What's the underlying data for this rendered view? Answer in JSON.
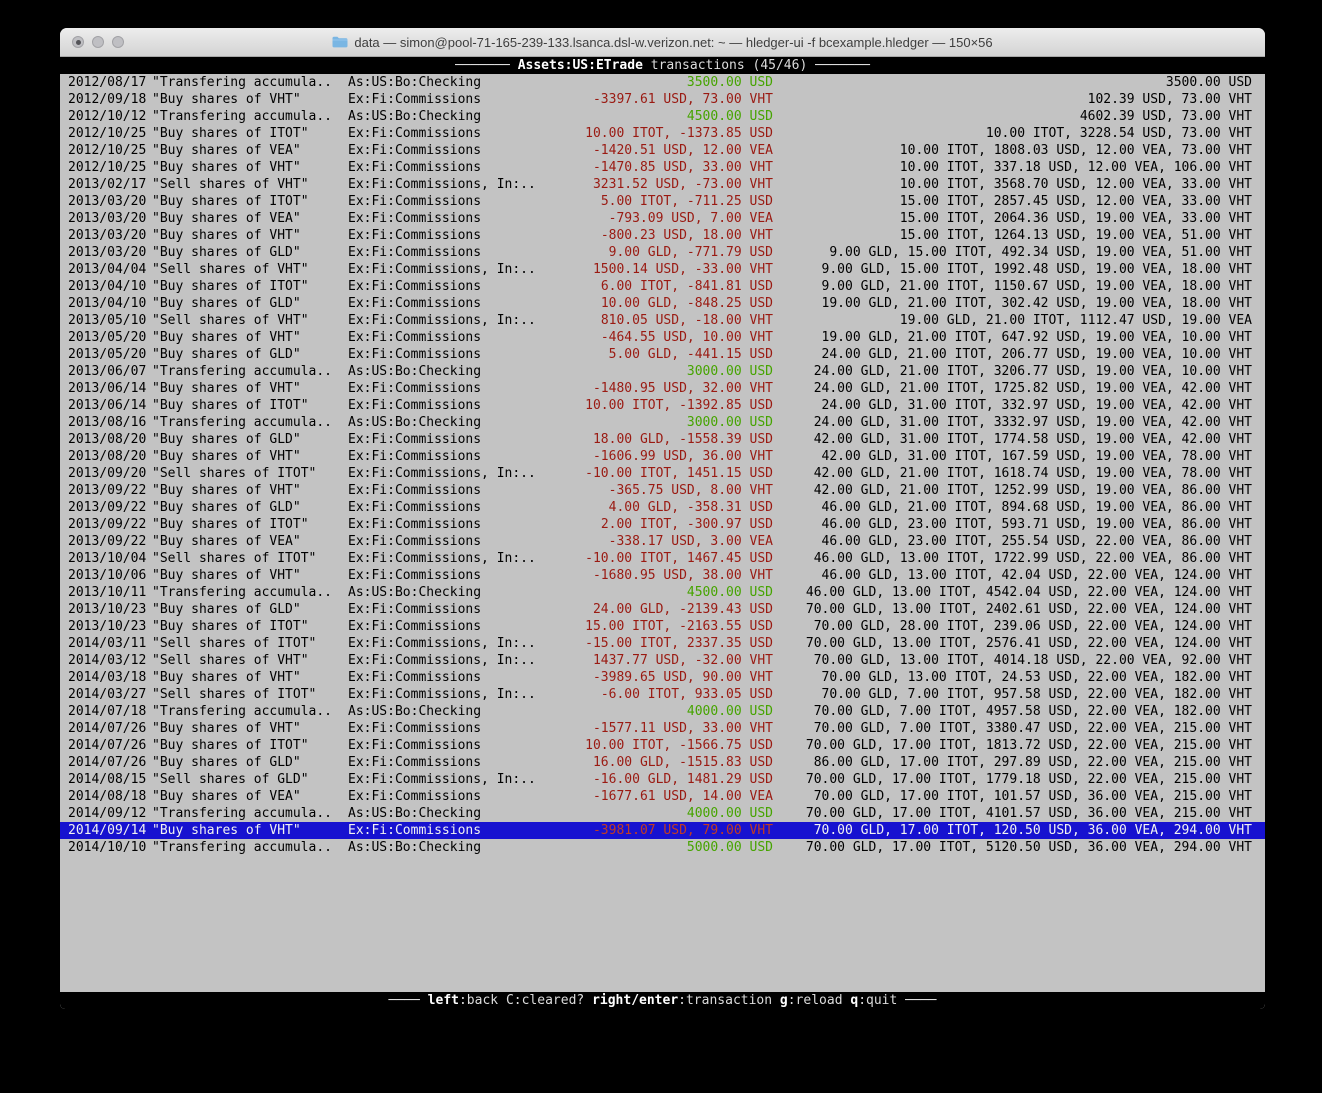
{
  "colors": {
    "terminal_bg": "#c3c3c3",
    "positive_amount": "#46a400",
    "negative_amount": "#9a1a12",
    "selected_row_bg": "#1712d0",
    "selected_row_text": "#f2f2f2",
    "selected_negative_amount": "#c23b22",
    "bar_bg": "#000000",
    "bar_text": "#dcdcdc"
  },
  "window": {
    "title": "data — simon@pool-71-165-239-133.lsanca.dsl-w.verizon.net: ~ — hledger-ui -f bcexample.hledger — 150×56",
    "traffic_lights": [
      "close",
      "minimize",
      "zoom"
    ],
    "folder_icon": "blue-folder-icon"
  },
  "header": {
    "dash_left": "─────── ",
    "account": "Assets:US:ETrade",
    "subtitle": " transactions (45/46)",
    "dash_right": " ───────"
  },
  "footer": {
    "dash_left": "──── ",
    "dash_right": " ────",
    "hints": [
      {
        "key": "left",
        "label": ":back",
        "bold": true
      },
      {
        "key": "C",
        "label": ":cleared?",
        "bold": false
      },
      {
        "key": "right/enter",
        "label": ":transaction",
        "bold": true
      },
      {
        "key": "g",
        "label": ":reload",
        "bold": true
      },
      {
        "key": "q",
        "label": ":quit",
        "bold": true
      }
    ]
  },
  "register": {
    "selected_index": 44,
    "rows": [
      {
        "date": "2012/08/17",
        "desc": "\"Transfering accumula..",
        "account": "As:US:Bo:Checking",
        "change": "3500.00 USD",
        "tone": "green",
        "balance": "3500.00 USD"
      },
      {
        "date": "2012/09/18",
        "desc": "\"Buy shares of VHT\"",
        "account": "Ex:Fi:Commissions",
        "change": "-3397.61 USD, 73.00 VHT",
        "tone": "red",
        "balance": "102.39 USD, 73.00 VHT"
      },
      {
        "date": "2012/10/12",
        "desc": "\"Transfering accumula..",
        "account": "As:US:Bo:Checking",
        "change": "4500.00 USD",
        "tone": "green",
        "balance": "4602.39 USD, 73.00 VHT"
      },
      {
        "date": "2012/10/25",
        "desc": "\"Buy shares of ITOT\"",
        "account": "Ex:Fi:Commissions",
        "change": "10.00 ITOT, -1373.85 USD",
        "tone": "red",
        "balance": "10.00 ITOT, 3228.54 USD, 73.00 VHT"
      },
      {
        "date": "2012/10/25",
        "desc": "\"Buy shares of VEA\"",
        "account": "Ex:Fi:Commissions",
        "change": "-1420.51 USD, 12.00 VEA",
        "tone": "red",
        "balance": "10.00 ITOT, 1808.03 USD, 12.00 VEA, 73.00 VHT"
      },
      {
        "date": "2012/10/25",
        "desc": "\"Buy shares of VHT\"",
        "account": "Ex:Fi:Commissions",
        "change": "-1470.85 USD, 33.00 VHT",
        "tone": "red",
        "balance": "10.00 ITOT, 337.18 USD, 12.00 VEA, 106.00 VHT"
      },
      {
        "date": "2013/02/17",
        "desc": "\"Sell shares of VHT\"",
        "account": "Ex:Fi:Commissions, In:..",
        "change": "3231.52 USD, -73.00 VHT",
        "tone": "red",
        "balance": "10.00 ITOT, 3568.70 USD, 12.00 VEA, 33.00 VHT"
      },
      {
        "date": "2013/03/20",
        "desc": "\"Buy shares of ITOT\"",
        "account": "Ex:Fi:Commissions",
        "change": "5.00 ITOT, -711.25 USD",
        "tone": "red",
        "balance": "15.00 ITOT, 2857.45 USD, 12.00 VEA, 33.00 VHT"
      },
      {
        "date": "2013/03/20",
        "desc": "\"Buy shares of VEA\"",
        "account": "Ex:Fi:Commissions",
        "change": "-793.09 USD, 7.00 VEA",
        "tone": "red",
        "balance": "15.00 ITOT, 2064.36 USD, 19.00 VEA, 33.00 VHT"
      },
      {
        "date": "2013/03/20",
        "desc": "\"Buy shares of VHT\"",
        "account": "Ex:Fi:Commissions",
        "change": "-800.23 USD, 18.00 VHT",
        "tone": "red",
        "balance": "15.00 ITOT, 1264.13 USD, 19.00 VEA, 51.00 VHT"
      },
      {
        "date": "2013/03/20",
        "desc": "\"Buy shares of GLD\"",
        "account": "Ex:Fi:Commissions",
        "change": "9.00 GLD, -771.79 USD",
        "tone": "red",
        "balance": "9.00 GLD, 15.00 ITOT, 492.34 USD, 19.00 VEA, 51.00 VHT"
      },
      {
        "date": "2013/04/04",
        "desc": "\"Sell shares of VHT\"",
        "account": "Ex:Fi:Commissions, In:..",
        "change": "1500.14 USD, -33.00 VHT",
        "tone": "red",
        "balance": "9.00 GLD, 15.00 ITOT, 1992.48 USD, 19.00 VEA, 18.00 VHT"
      },
      {
        "date": "2013/04/10",
        "desc": "\"Buy shares of ITOT\"",
        "account": "Ex:Fi:Commissions",
        "change": "6.00 ITOT, -841.81 USD",
        "tone": "red",
        "balance": "9.00 GLD, 21.00 ITOT, 1150.67 USD, 19.00 VEA, 18.00 VHT"
      },
      {
        "date": "2013/04/10",
        "desc": "\"Buy shares of GLD\"",
        "account": "Ex:Fi:Commissions",
        "change": "10.00 GLD, -848.25 USD",
        "tone": "red",
        "balance": "19.00 GLD, 21.00 ITOT, 302.42 USD, 19.00 VEA, 18.00 VHT"
      },
      {
        "date": "2013/05/10",
        "desc": "\"Sell shares of VHT\"",
        "account": "Ex:Fi:Commissions, In:..",
        "change": "810.05 USD, -18.00 VHT",
        "tone": "red",
        "balance": "19.00 GLD, 21.00 ITOT, 1112.47 USD, 19.00 VEA"
      },
      {
        "date": "2013/05/20",
        "desc": "\"Buy shares of VHT\"",
        "account": "Ex:Fi:Commissions",
        "change": "-464.55 USD, 10.00 VHT",
        "tone": "red",
        "balance": "19.00 GLD, 21.00 ITOT, 647.92 USD, 19.00 VEA, 10.00 VHT"
      },
      {
        "date": "2013/05/20",
        "desc": "\"Buy shares of GLD\"",
        "account": "Ex:Fi:Commissions",
        "change": "5.00 GLD, -441.15 USD",
        "tone": "red",
        "balance": "24.00 GLD, 21.00 ITOT, 206.77 USD, 19.00 VEA, 10.00 VHT"
      },
      {
        "date": "2013/06/07",
        "desc": "\"Transfering accumula..",
        "account": "As:US:Bo:Checking",
        "change": "3000.00 USD",
        "tone": "green",
        "balance": "24.00 GLD, 21.00 ITOT, 3206.77 USD, 19.00 VEA, 10.00 VHT"
      },
      {
        "date": "2013/06/14",
        "desc": "\"Buy shares of VHT\"",
        "account": "Ex:Fi:Commissions",
        "change": "-1480.95 USD, 32.00 VHT",
        "tone": "red",
        "balance": "24.00 GLD, 21.00 ITOT, 1725.82 USD, 19.00 VEA, 42.00 VHT"
      },
      {
        "date": "2013/06/14",
        "desc": "\"Buy shares of ITOT\"",
        "account": "Ex:Fi:Commissions",
        "change": "10.00 ITOT, -1392.85 USD",
        "tone": "red",
        "balance": "24.00 GLD, 31.00 ITOT, 332.97 USD, 19.00 VEA, 42.00 VHT"
      },
      {
        "date": "2013/08/16",
        "desc": "\"Transfering accumula..",
        "account": "As:US:Bo:Checking",
        "change": "3000.00 USD",
        "tone": "green",
        "balance": "24.00 GLD, 31.00 ITOT, 3332.97 USD, 19.00 VEA, 42.00 VHT"
      },
      {
        "date": "2013/08/20",
        "desc": "\"Buy shares of GLD\"",
        "account": "Ex:Fi:Commissions",
        "change": "18.00 GLD, -1558.39 USD",
        "tone": "red",
        "balance": "42.00 GLD, 31.00 ITOT, 1774.58 USD, 19.00 VEA, 42.00 VHT"
      },
      {
        "date": "2013/08/20",
        "desc": "\"Buy shares of VHT\"",
        "account": "Ex:Fi:Commissions",
        "change": "-1606.99 USD, 36.00 VHT",
        "tone": "red",
        "balance": "42.00 GLD, 31.00 ITOT, 167.59 USD, 19.00 VEA, 78.00 VHT"
      },
      {
        "date": "2013/09/20",
        "desc": "\"Sell shares of ITOT\"",
        "account": "Ex:Fi:Commissions, In:..",
        "change": "-10.00 ITOT, 1451.15 USD",
        "tone": "red",
        "balance": "42.00 GLD, 21.00 ITOT, 1618.74 USD, 19.00 VEA, 78.00 VHT"
      },
      {
        "date": "2013/09/22",
        "desc": "\"Buy shares of VHT\"",
        "account": "Ex:Fi:Commissions",
        "change": "-365.75 USD, 8.00 VHT",
        "tone": "red",
        "balance": "42.00 GLD, 21.00 ITOT, 1252.99 USD, 19.00 VEA, 86.00 VHT"
      },
      {
        "date": "2013/09/22",
        "desc": "\"Buy shares of GLD\"",
        "account": "Ex:Fi:Commissions",
        "change": "4.00 GLD, -358.31 USD",
        "tone": "red",
        "balance": "46.00 GLD, 21.00 ITOT, 894.68 USD, 19.00 VEA, 86.00 VHT"
      },
      {
        "date": "2013/09/22",
        "desc": "\"Buy shares of ITOT\"",
        "account": "Ex:Fi:Commissions",
        "change": "2.00 ITOT, -300.97 USD",
        "tone": "red",
        "balance": "46.00 GLD, 23.00 ITOT, 593.71 USD, 19.00 VEA, 86.00 VHT"
      },
      {
        "date": "2013/09/22",
        "desc": "\"Buy shares of VEA\"",
        "account": "Ex:Fi:Commissions",
        "change": "-338.17 USD, 3.00 VEA",
        "tone": "red",
        "balance": "46.00 GLD, 23.00 ITOT, 255.54 USD, 22.00 VEA, 86.00 VHT"
      },
      {
        "date": "2013/10/04",
        "desc": "\"Sell shares of ITOT\"",
        "account": "Ex:Fi:Commissions, In:..",
        "change": "-10.00 ITOT, 1467.45 USD",
        "tone": "red",
        "balance": "46.00 GLD, 13.00 ITOT, 1722.99 USD, 22.00 VEA, 86.00 VHT"
      },
      {
        "date": "2013/10/06",
        "desc": "\"Buy shares of VHT\"",
        "account": "Ex:Fi:Commissions",
        "change": "-1680.95 USD, 38.00 VHT",
        "tone": "red",
        "balance": "46.00 GLD, 13.00 ITOT, 42.04 USD, 22.00 VEA, 124.00 VHT"
      },
      {
        "date": "2013/10/11",
        "desc": "\"Transfering accumula..",
        "account": "As:US:Bo:Checking",
        "change": "4500.00 USD",
        "tone": "green",
        "balance": "46.00 GLD, 13.00 ITOT, 4542.04 USD, 22.00 VEA, 124.00 VHT"
      },
      {
        "date": "2013/10/23",
        "desc": "\"Buy shares of GLD\"",
        "account": "Ex:Fi:Commissions",
        "change": "24.00 GLD, -2139.43 USD",
        "tone": "red",
        "balance": "70.00 GLD, 13.00 ITOT, 2402.61 USD, 22.00 VEA, 124.00 VHT"
      },
      {
        "date": "2013/10/23",
        "desc": "\"Buy shares of ITOT\"",
        "account": "Ex:Fi:Commissions",
        "change": "15.00 ITOT, -2163.55 USD",
        "tone": "red",
        "balance": "70.00 GLD, 28.00 ITOT, 239.06 USD, 22.00 VEA, 124.00 VHT"
      },
      {
        "date": "2014/03/11",
        "desc": "\"Sell shares of ITOT\"",
        "account": "Ex:Fi:Commissions, In:..",
        "change": "-15.00 ITOT, 2337.35 USD",
        "tone": "red",
        "balance": "70.00 GLD, 13.00 ITOT, 2576.41 USD, 22.00 VEA, 124.00 VHT"
      },
      {
        "date": "2014/03/12",
        "desc": "\"Sell shares of VHT\"",
        "account": "Ex:Fi:Commissions, In:..",
        "change": "1437.77 USD, -32.00 VHT",
        "tone": "red",
        "balance": "70.00 GLD, 13.00 ITOT, 4014.18 USD, 22.00 VEA, 92.00 VHT"
      },
      {
        "date": "2014/03/18",
        "desc": "\"Buy shares of VHT\"",
        "account": "Ex:Fi:Commissions",
        "change": "-3989.65 USD, 90.00 VHT",
        "tone": "red",
        "balance": "70.00 GLD, 13.00 ITOT, 24.53 USD, 22.00 VEA, 182.00 VHT"
      },
      {
        "date": "2014/03/27",
        "desc": "\"Sell shares of ITOT\"",
        "account": "Ex:Fi:Commissions, In:..",
        "change": "-6.00 ITOT, 933.05 USD",
        "tone": "red",
        "balance": "70.00 GLD, 7.00 ITOT, 957.58 USD, 22.00 VEA, 182.00 VHT"
      },
      {
        "date": "2014/07/18",
        "desc": "\"Transfering accumula..",
        "account": "As:US:Bo:Checking",
        "change": "4000.00 USD",
        "tone": "green",
        "balance": "70.00 GLD, 7.00 ITOT, 4957.58 USD, 22.00 VEA, 182.00 VHT"
      },
      {
        "date": "2014/07/26",
        "desc": "\"Buy shares of VHT\"",
        "account": "Ex:Fi:Commissions",
        "change": "-1577.11 USD, 33.00 VHT",
        "tone": "red",
        "balance": "70.00 GLD, 7.00 ITOT, 3380.47 USD, 22.00 VEA, 215.00 VHT"
      },
      {
        "date": "2014/07/26",
        "desc": "\"Buy shares of ITOT\"",
        "account": "Ex:Fi:Commissions",
        "change": "10.00 ITOT, -1566.75 USD",
        "tone": "red",
        "balance": "70.00 GLD, 17.00 ITOT, 1813.72 USD, 22.00 VEA, 215.00 VHT"
      },
      {
        "date": "2014/07/26",
        "desc": "\"Buy shares of GLD\"",
        "account": "Ex:Fi:Commissions",
        "change": "16.00 GLD, -1515.83 USD",
        "tone": "red",
        "balance": "86.00 GLD, 17.00 ITOT, 297.89 USD, 22.00 VEA, 215.00 VHT"
      },
      {
        "date": "2014/08/15",
        "desc": "\"Sell shares of GLD\"",
        "account": "Ex:Fi:Commissions, In:..",
        "change": "-16.00 GLD, 1481.29 USD",
        "tone": "red",
        "balance": "70.00 GLD, 17.00 ITOT, 1779.18 USD, 22.00 VEA, 215.00 VHT"
      },
      {
        "date": "2014/08/18",
        "desc": "\"Buy shares of VEA\"",
        "account": "Ex:Fi:Commissions",
        "change": "-1677.61 USD, 14.00 VEA",
        "tone": "red",
        "balance": "70.00 GLD, 17.00 ITOT, 101.57 USD, 36.00 VEA, 215.00 VHT"
      },
      {
        "date": "2014/09/12",
        "desc": "\"Transfering accumula..",
        "account": "As:US:Bo:Checking",
        "change": "4000.00 USD",
        "tone": "green",
        "balance": "70.00 GLD, 17.00 ITOT, 4101.57 USD, 36.00 VEA, 215.00 VHT"
      },
      {
        "date": "2014/09/14",
        "desc": "\"Buy shares of VHT\"",
        "account": "Ex:Fi:Commissions",
        "change": "-3981.07 USD, 79.00 VHT",
        "tone": "red",
        "balance": "70.00 GLD, 17.00 ITOT, 120.50 USD, 36.00 VEA, 294.00 VHT"
      },
      {
        "date": "2014/10/10",
        "desc": "\"Transfering accumula..",
        "account": "As:US:Bo:Checking",
        "change": "5000.00 USD",
        "tone": "green",
        "balance": "70.00 GLD, 17.00 ITOT, 5120.50 USD, 36.00 VEA, 294.00 VHT"
      }
    ]
  }
}
